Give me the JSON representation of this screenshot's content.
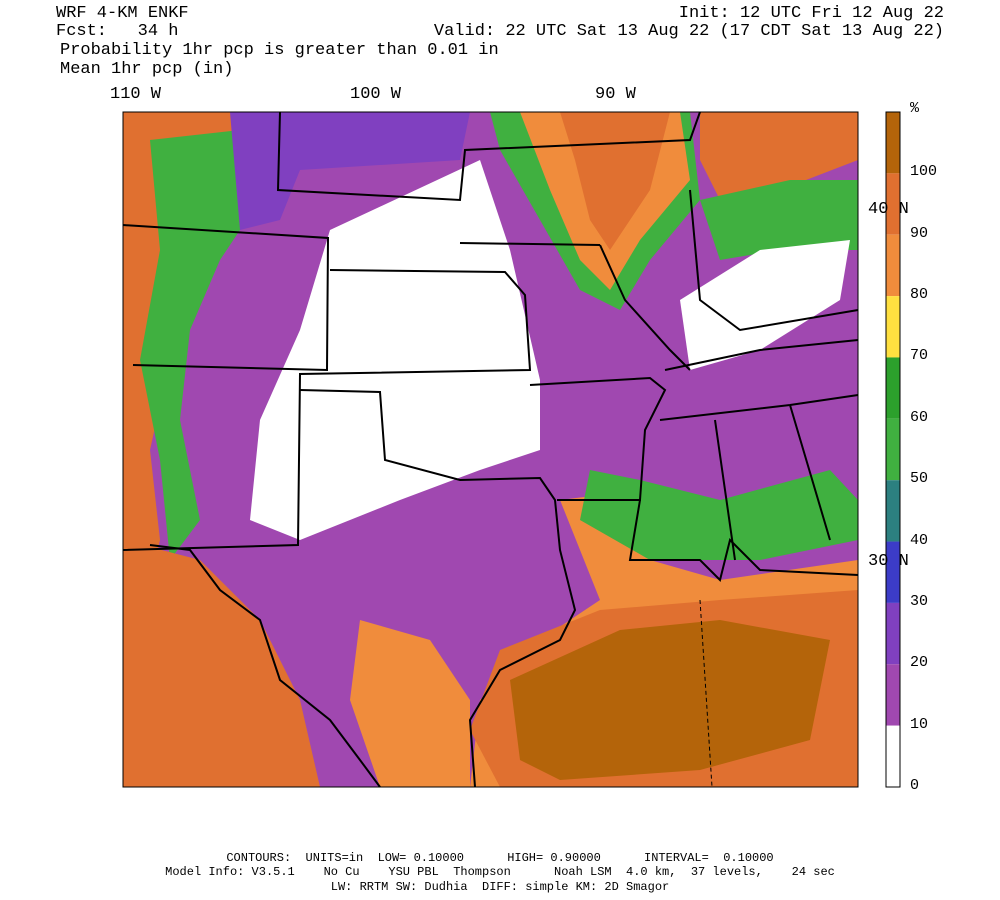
{
  "header": {
    "lines": [
      "WRF 4-KM ENKF",
      "Fcst:   34 h",
      "Probability 1hr pcp is greater than 0.01 in",
      "Mean 1hr pcp (in)"
    ],
    "init": "Init: 12 UTC Fri 12 Aug 22",
    "valid": "Valid: 22 UTC Sat 13 Aug 22 (17 CDT Sat 13 Aug 22)"
  },
  "map": {
    "lon_labels": [
      "110 W",
      "100 W",
      "90 W"
    ],
    "lat_labels": [
      "40 N",
      "30 N"
    ]
  },
  "colorbar": {
    "unit": "%",
    "labels": [
      100,
      90,
      80,
      70,
      60,
      50,
      40,
      30,
      20,
      10,
      0
    ],
    "colors": [
      "#b4640a",
      "#e07030",
      "#f08c3c",
      "#ffe040",
      "#2ca02c",
      "#40b040",
      "#2c8080",
      "#3c3cc8",
      "#8040c0",
      "#a048b0",
      "#ffffff"
    ]
  },
  "footer": [
    "CONTOURS:  UNITS=in  LOW= 0.10000      HIGH= 0.90000      INTERVAL=  0.10000",
    "Model Info: V3.5.1    No Cu    YSU PBL  Thompson      Noah LSM  4.0 km,  37 levels,    24 sec",
    "LW: RRTM SW: Dudhia  DIFF: simple KM: 2D Smagor"
  ]
}
